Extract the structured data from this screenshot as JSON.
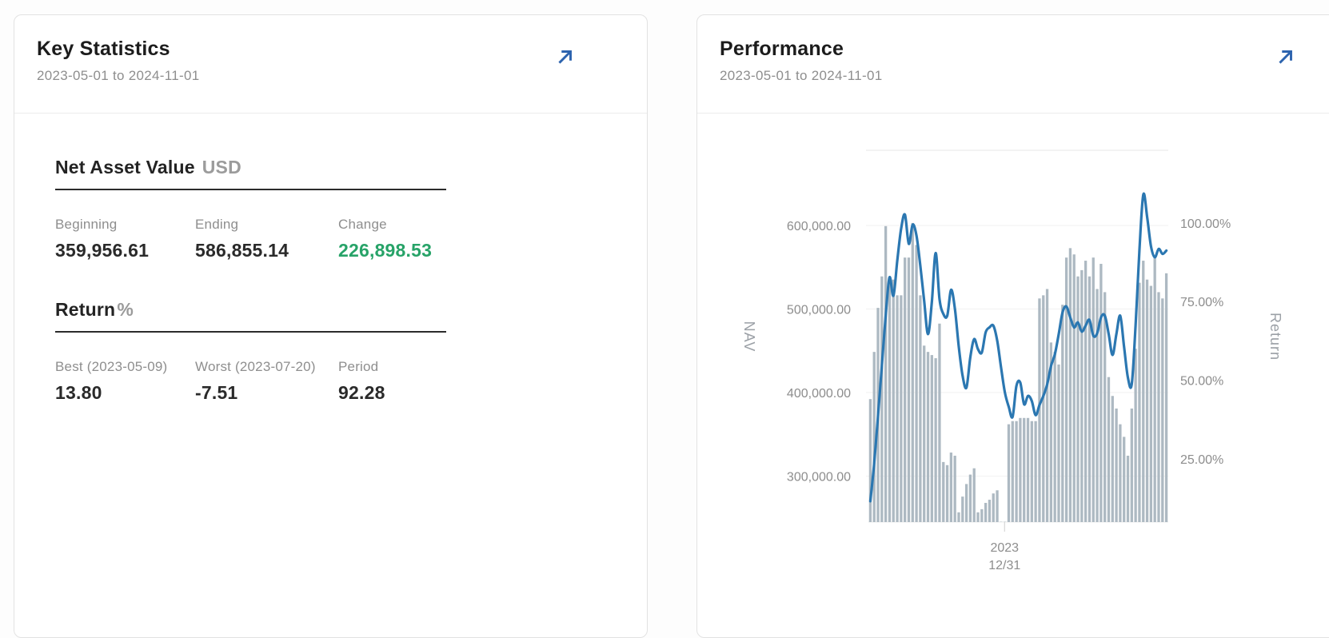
{
  "cards": {
    "key_statistics": {
      "title": "Key Statistics",
      "date_range": "2023-05-01 to 2024-11-01",
      "sections": {
        "nav": {
          "heading": "Net Asset Value",
          "heading_suffix": "USD",
          "stats": [
            {
              "label": "Beginning",
              "value": "359,956.61"
            },
            {
              "label": "Ending",
              "value": "586,855.14"
            },
            {
              "label": "Change",
              "value": "226,898.53"
            }
          ]
        },
        "return": {
          "heading": "Return",
          "heading_suffix": "%",
          "stats": [
            {
              "label": "Best (2023-05-09)",
              "value": "13.80"
            },
            {
              "label": "Worst (2023-07-20)",
              "value": "-7.51"
            },
            {
              "label": "Period",
              "value": "92.28"
            }
          ]
        }
      }
    },
    "performance": {
      "title": "Performance",
      "date_range": "2023-05-01 to 2024-11-01"
    }
  },
  "colors": {
    "positive_green": "#27a368",
    "expand_arrow_blue": "#2c63ae",
    "nav_line_blue": "#2b77b1",
    "return_bar_gray": "#adb9c2"
  },
  "chart_data": {
    "type": "composite",
    "title": "Performance",
    "x_axis": {
      "tick_label_line1": "2023",
      "tick_label_line2": "12/31",
      "tick_fraction": 0.454
    },
    "y_axis_left": {
      "label": "NAV",
      "ticks": [
        "600,000.00",
        "500,000.00",
        "400,000.00",
        "300,000.00"
      ],
      "tick_values": [
        600000,
        500000,
        400000,
        300000
      ],
      "min": 245000,
      "max": 690000
    },
    "y_axis_right": {
      "label": "Return",
      "ticks": [
        "100.00%",
        "75.00%",
        "50.00%",
        "25.00%"
      ],
      "tick_values": [
        100,
        75,
        50,
        25
      ],
      "min": 4.9,
      "max": 123.1
    },
    "series": [
      {
        "name": "NAV",
        "type": "line",
        "axis": "left",
        "color": "#2b77b1",
        "values": [
          270000,
          315000,
          372000,
          432000,
          492000,
          538000,
          516000,
          558000,
          596000,
          613000,
          578000,
          601000,
          588000,
          552000,
          510000,
          470000,
          508000,
          567000,
          512000,
          494000,
          492000,
          523000,
          500000,
          455000,
          420000,
          406000,
          442000,
          464000,
          452000,
          448000,
          472000,
          478000,
          480000,
          462000,
          430000,
          400000,
          383000,
          371000,
          408000,
          412000,
          386000,
          396000,
          390000,
          373000,
          385000,
          396000,
          410000,
          432000,
          446000,
          470000,
          496000,
          503000,
          490000,
          478000,
          484000,
          473000,
          480000,
          487000,
          468000,
          471000,
          490000,
          492000,
          470000,
          445000,
          470000,
          492000,
          455000,
          418000,
          410000,
          480000,
          570000,
          637000,
          610000,
          575000,
          562000,
          572000,
          566000,
          570000
        ]
      },
      {
        "name": "Return",
        "type": "bar",
        "axis": "right",
        "color": "#adb9c2",
        "values": [
          44,
          59,
          73,
          83,
          99,
          82,
          82,
          77,
          77,
          89,
          89,
          100,
          93,
          77,
          61,
          59,
          58,
          57,
          68,
          24,
          23,
          27,
          26,
          8,
          13,
          17,
          20,
          22,
          8,
          9,
          11,
          12,
          14,
          15,
          5,
          5,
          36,
          37,
          37,
          38,
          38,
          38,
          37,
          37,
          76,
          77,
          79,
          62,
          59,
          55,
          74,
          89,
          92,
          90,
          83,
          85,
          88,
          83,
          89,
          79,
          87,
          78,
          51,
          45,
          41,
          36,
          32,
          26,
          41,
          60,
          81,
          88,
          82,
          80,
          89,
          78,
          76,
          84
        ]
      }
    ]
  }
}
